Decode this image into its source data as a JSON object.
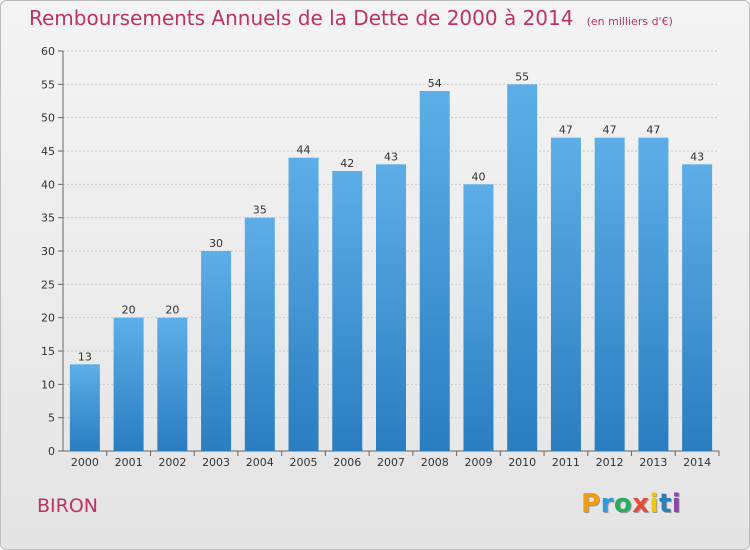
{
  "header": {
    "title": "Remboursements Annuels de la Dette de 2000 à 2014",
    "unit": "(en milliers d'€)"
  },
  "footer": {
    "commune": "BIRON",
    "logo_text": "Proxiti"
  },
  "colors": {
    "title": "#c0335f",
    "bar_top": "#5daee8",
    "bar_bottom": "#2a7dc0",
    "grid": "#c8c8c8"
  },
  "chart_data": {
    "type": "bar",
    "categories": [
      "2000",
      "2001",
      "2002",
      "2003",
      "2004",
      "2005",
      "2006",
      "2007",
      "2008",
      "2009",
      "2010",
      "2011",
      "2012",
      "2013",
      "2014"
    ],
    "values": [
      13,
      20,
      20,
      30,
      35,
      44,
      42,
      43,
      54,
      40,
      55,
      47,
      47,
      47,
      43
    ],
    "ylim": [
      0,
      60
    ],
    "yticks": [
      0,
      5,
      10,
      15,
      20,
      25,
      30,
      35,
      40,
      45,
      50,
      55,
      60
    ],
    "grid": true,
    "data_labels": true
  }
}
